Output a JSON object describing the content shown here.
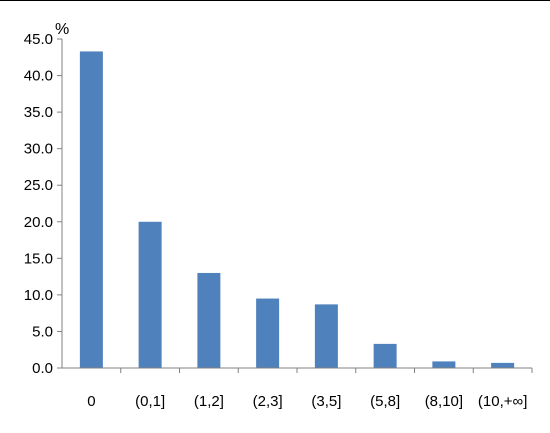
{
  "chart_data": {
    "type": "bar",
    "ylabel": "%",
    "categories": [
      "0",
      "(0,1]",
      "(1,2]",
      "(2,3]",
      "(3,5]",
      "(5,8]",
      "(8,10]",
      "(10,+∞]"
    ],
    "values": [
      43.3,
      20.0,
      13.0,
      9.5,
      8.7,
      3.3,
      0.9,
      0.7
    ],
    "ylim": [
      0,
      45
    ],
    "yticks": [
      "0.0",
      "5.0",
      "10.0",
      "15.0",
      "20.0",
      "25.0",
      "30.0",
      "35.0",
      "40.0",
      "45.0"
    ],
    "grid": false,
    "legend": "none",
    "bar_color": "#4F81BD"
  }
}
